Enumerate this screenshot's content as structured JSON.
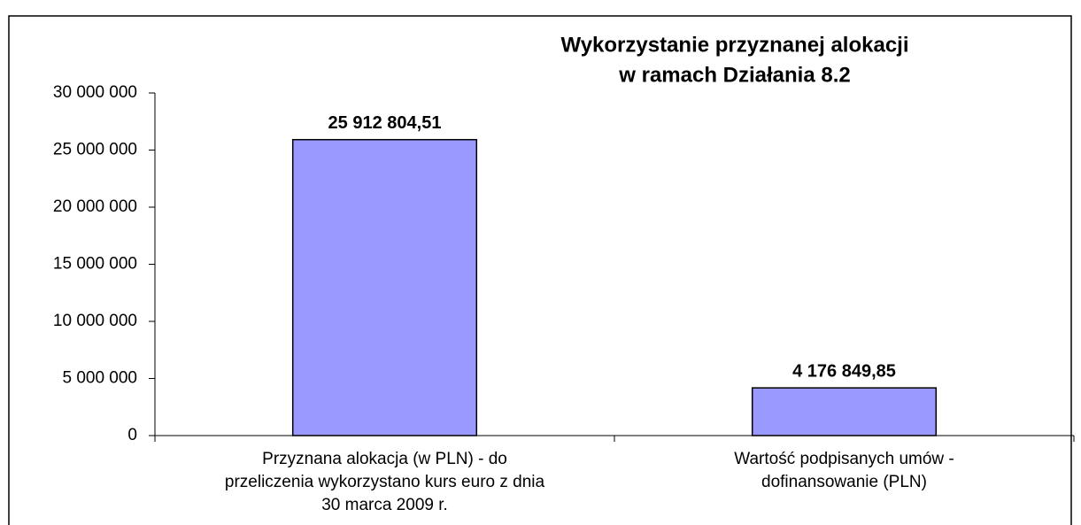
{
  "chart_data": {
    "type": "bar",
    "title": [
      "Wykorzystanie przyznanej alokacji",
      "w ramach Działania 8.2"
    ],
    "categories": [
      "Przyznana alokacja (w PLN) - do przeliczenia wykorzystano kurs euro z dnia 30 marca 2009 r.",
      "Wartość podpisanych umów - dofinansowanie (PLN)"
    ],
    "values": [
      25912804.51,
      4176849.85
    ],
    "value_labels": [
      "25 912 804,51",
      "4 176 849,85"
    ],
    "color": "#9999ff",
    "ylim": [
      0,
      30000000
    ],
    "yticks": [
      0,
      {
        "value": 5000000,
        "label": "5 000 000"
      },
      {
        "value": 10000000,
        "label": "10 000 000"
      },
      {
        "value": 15000000,
        "label": "15 000 000"
      },
      {
        "value": 20000000,
        "label": "20 000 000"
      },
      {
        "value": 25000000,
        "label": "25 000 000"
      },
      {
        "value": 30000000,
        "label": "30 000 000"
      }
    ],
    "grid": false
  }
}
